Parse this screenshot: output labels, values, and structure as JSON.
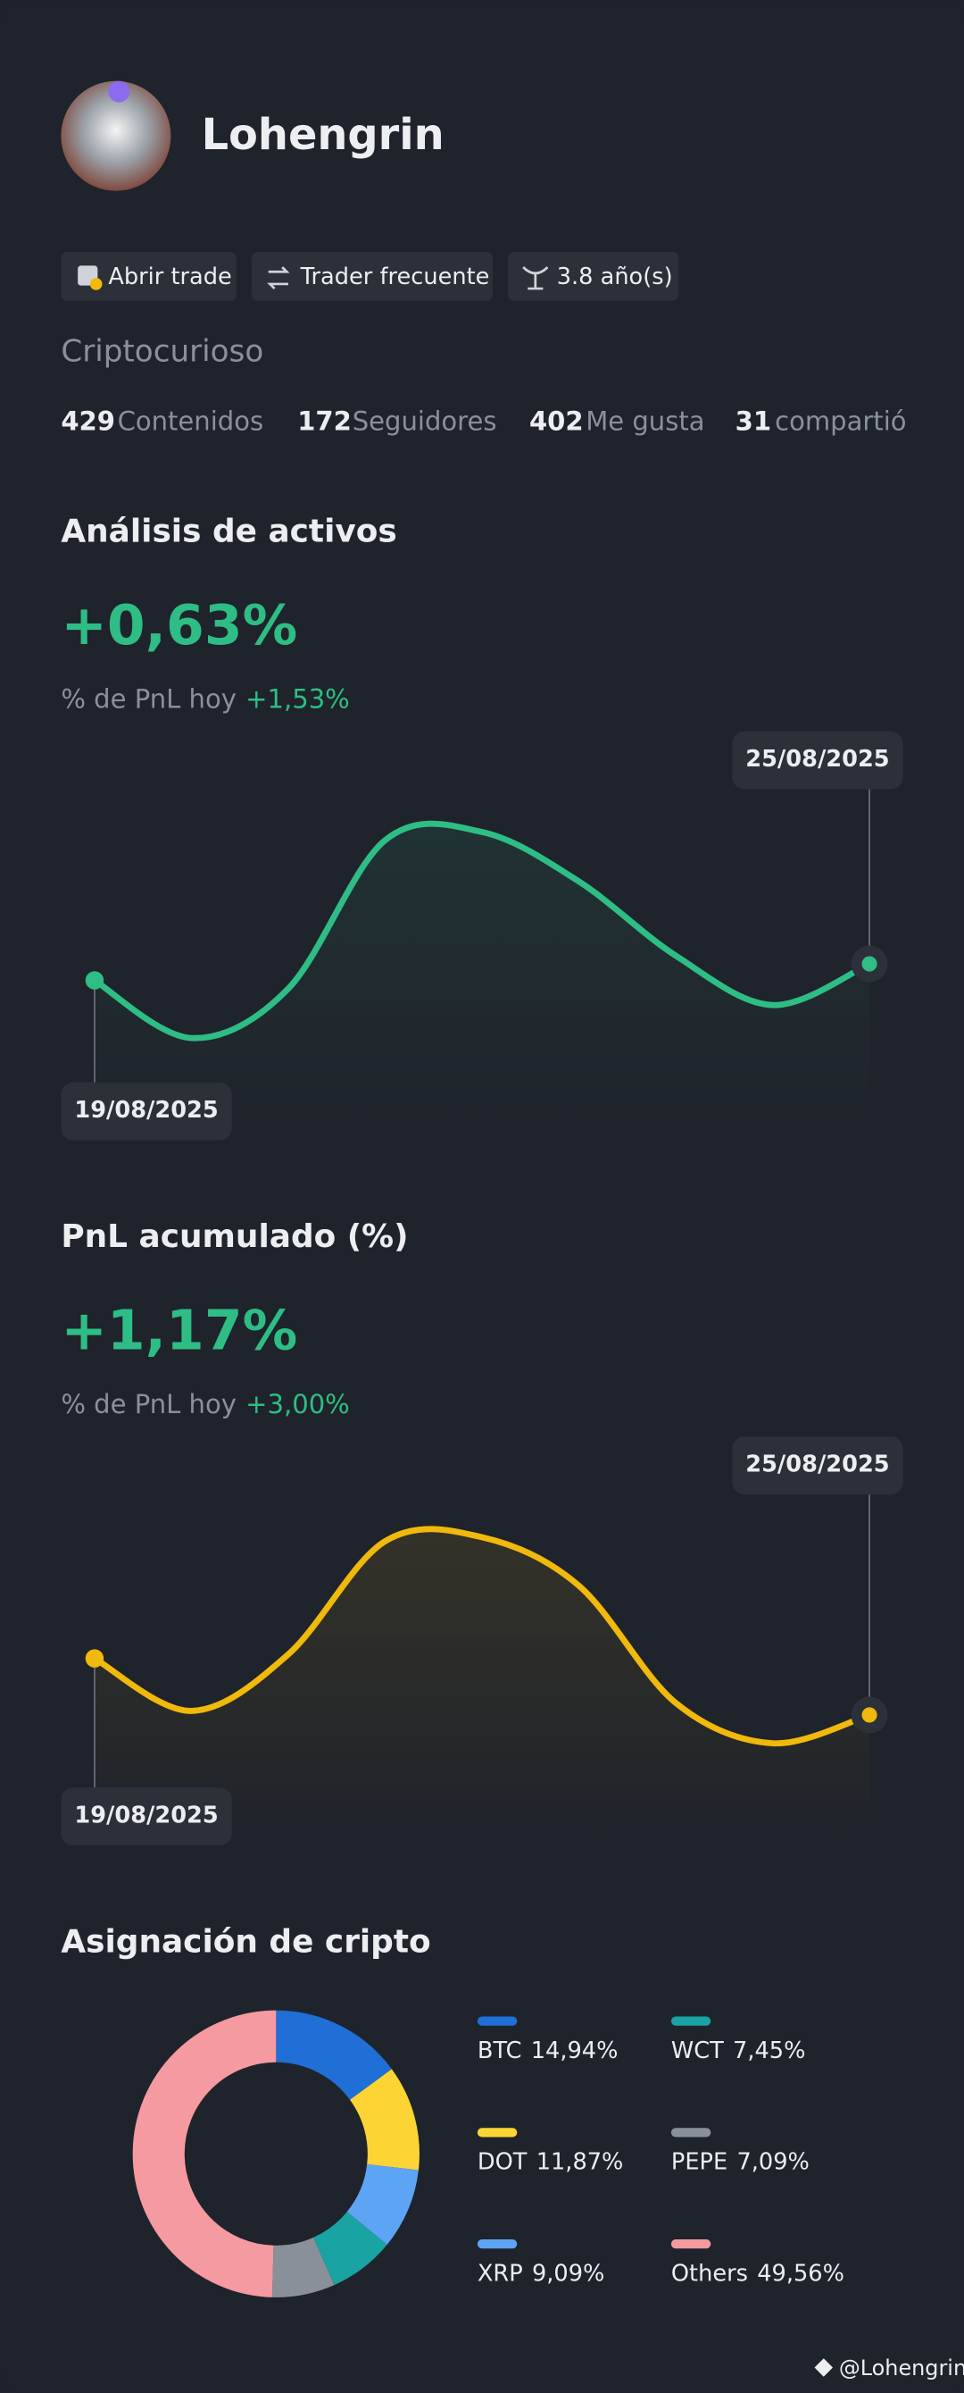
{
  "profile": {
    "name": "Lohengrin",
    "badges": [
      "Abrir trade",
      "Trader frecuente",
      "3.8 año(s)"
    ],
    "bio": "Criptocurioso",
    "stats": [
      {
        "value": 429,
        "label": "Contenidos"
      },
      {
        "value": 172,
        "label": "Seguidores"
      },
      {
        "value": 402,
        "label": "Me gusta"
      },
      {
        "value": 31,
        "label": "compartió"
      }
    ]
  },
  "chart_data": [
    {
      "type": "line",
      "title": "Análisis de activos",
      "headline": "+0,63%",
      "subtitle": "% de PnL hoy",
      "subtitle_value": "+1,53%",
      "categories": [
        "19/08/2025",
        null,
        null,
        null,
        null,
        null,
        null,
        null,
        "25/08/2025"
      ],
      "series": [
        {
          "color": "#2ebd85",
          "values": [
            42,
            28,
            40,
            76,
            78,
            66,
            48,
            36,
            46
          ]
        }
      ]
    },
    {
      "type": "line",
      "title": "PnL acumulado (%)",
      "headline": "+1,17%",
      "subtitle": "% de PnL hoy",
      "subtitle_value": "+3,00%",
      "categories": [
        "19/08/2025",
        null,
        null,
        null,
        null,
        null,
        null,
        null,
        "25/08/2025"
      ],
      "series": [
        {
          "color": "#f0b90b",
          "values": [
            48,
            35,
            49,
            77,
            78,
            66,
            37,
            27,
            34
          ]
        }
      ]
    },
    {
      "type": "donut",
      "title": "Asignación de cripto",
      "categories": [
        "BTC",
        "DOT",
        "XRP",
        "WCT",
        "PEPE",
        "Others"
      ],
      "values": [
        14.94,
        11.87,
        9.09,
        7.45,
        7.09,
        49.56
      ],
      "value_labels": [
        "14,94%",
        "11,87%",
        "9,09%",
        "7,45%",
        "7,09%",
        "49,56%"
      ],
      "colors": [
        "#1f6fd6",
        "#fcd535",
        "#5ea4f5",
        "#1aa3a3",
        "#8a9099",
        "#f59aa0"
      ]
    }
  ],
  "footer": "@Lohengrin"
}
